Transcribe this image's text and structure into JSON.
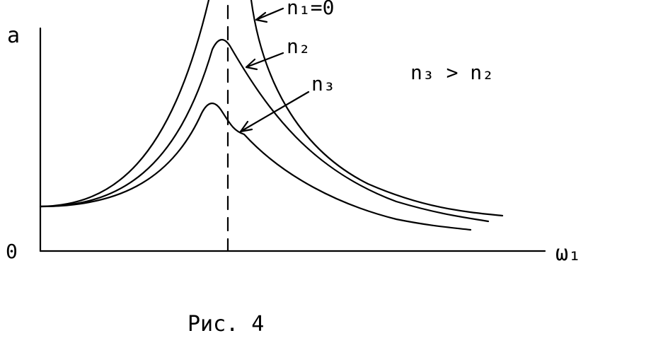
{
  "axes": {
    "y_label": "a",
    "origin": "0",
    "x_label": "ω₁"
  },
  "curves": [
    {
      "label": "n₁=0"
    },
    {
      "label": "n₂"
    },
    {
      "label": "n₃"
    }
  ],
  "condition": "n₃ > n₂",
  "caption": "Рис. 4"
}
